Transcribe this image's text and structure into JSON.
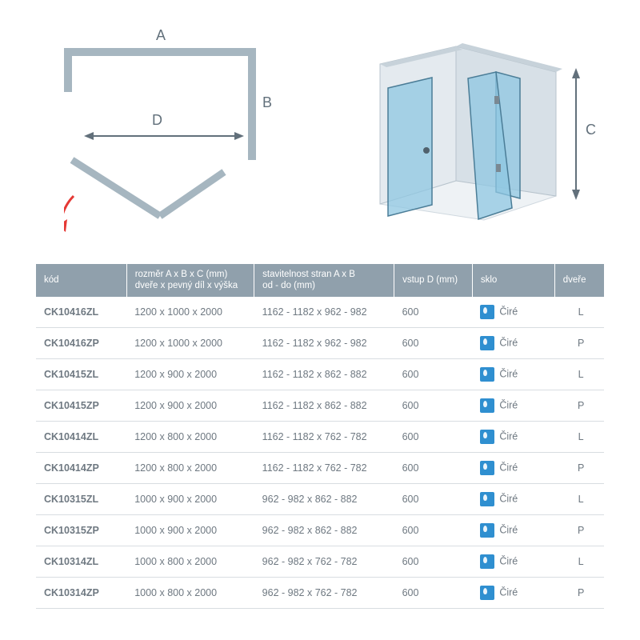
{
  "diagram": {
    "letters": {
      "A": "A",
      "B": "B",
      "C": "C",
      "D": "D"
    },
    "stroke_schematic": "#a6b6c0",
    "stroke_arrow_red": "#e53935",
    "stroke_dimline": "#62707b",
    "iso_wall_fill": "#e4eaef",
    "iso_wall_stroke": "#b7c3cc",
    "iso_glass_fill": "#8fc7e2",
    "iso_glass_stroke": "#4b7d97",
    "iso_floor_fill": "#eef2f5"
  },
  "table": {
    "header_bg": "#90a0ac",
    "header_fg": "#ffffff",
    "row_border": "#d8dde1",
    "sklo_icon_color": "#2f8fd0",
    "columns": [
      {
        "key": "code",
        "label1": "kód",
        "label2": ""
      },
      {
        "key": "dims",
        "label1": "rozměr A x B x C (mm)",
        "label2": "dveře x pevný díl x výška"
      },
      {
        "key": "adj",
        "label1": "stavitelnost stran A x B",
        "label2": "od - do (mm)"
      },
      {
        "key": "entry",
        "label1": "vstup D (mm)",
        "label2": ""
      },
      {
        "key": "glass",
        "label1": "sklo",
        "label2": ""
      },
      {
        "key": "door",
        "label1": "dveře",
        "label2": ""
      }
    ],
    "glass_label": "Čiré",
    "rows": [
      {
        "code": "CK10416ZL",
        "dims": "1200 x 1000 x 2000",
        "adj": "1162 - 1182 x 962 - 982",
        "entry": "600",
        "door": "L"
      },
      {
        "code": "CK10416ZP",
        "dims": "1200 x 1000 x 2000",
        "adj": "1162 - 1182 x 962 - 982",
        "entry": "600",
        "door": "P"
      },
      {
        "code": "CK10415ZL",
        "dims": "1200 x 900 x 2000",
        "adj": "1162 - 1182 x 862 - 882",
        "entry": "600",
        "door": "L"
      },
      {
        "code": "CK10415ZP",
        "dims": "1200 x 900 x 2000",
        "adj": "1162 - 1182 x 862 - 882",
        "entry": "600",
        "door": "P"
      },
      {
        "code": "CK10414ZL",
        "dims": "1200 x 800 x 2000",
        "adj": "1162 - 1182 x 762 - 782",
        "entry": "600",
        "door": "L"
      },
      {
        "code": "CK10414ZP",
        "dims": "1200 x 800 x 2000",
        "adj": "1162 - 1182 x 762 - 782",
        "entry": "600",
        "door": "P"
      },
      {
        "code": "CK10315ZL",
        "dims": "1000 x 900 x 2000",
        "adj": "962 - 982 x 862 - 882",
        "entry": "600",
        "door": "L"
      },
      {
        "code": "CK10315ZP",
        "dims": "1000 x 900 x 2000",
        "adj": "962 - 982 x 862 - 882",
        "entry": "600",
        "door": "P"
      },
      {
        "code": "CK10314ZL",
        "dims": "1000 x 800 x 2000",
        "adj": "962 - 982 x 762 - 782",
        "entry": "600",
        "door": "L"
      },
      {
        "code": "CK10314ZP",
        "dims": "1000 x 800 x 2000",
        "adj": "962 - 982 x 762 - 782",
        "entry": "600",
        "door": "P"
      }
    ]
  }
}
